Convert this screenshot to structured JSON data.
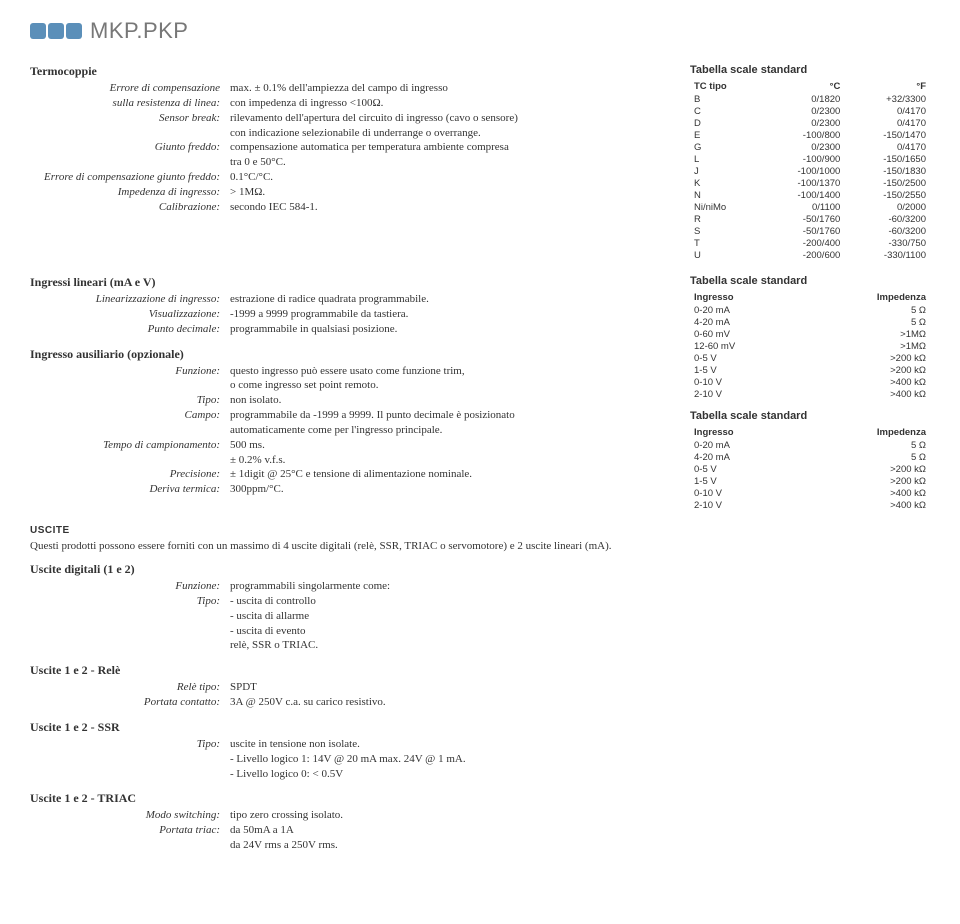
{
  "brand": {
    "name": "MKP.PKP"
  },
  "termo": {
    "title": "Termocoppie",
    "rows": [
      {
        "label": "Errore di compensazione\nsulla resistenza di linea:",
        "value": "max. ± 0.1% dell'ampiezza del campo di ingresso\ncon impedenza di ingresso <100Ω."
      },
      {
        "label": "Sensor break:",
        "value": "rilevamento dell'apertura del circuito di ingresso (cavo o sensore)\ncon indicazione selezionabile di underrange o overrange."
      },
      {
        "label": "Giunto freddo:",
        "value": "compensazione automatica per temperatura ambiente compresa\ntra 0 e 50°C."
      },
      {
        "label": "Errore di compensazione giunto freddo:",
        "value": "0.1°C/°C."
      },
      {
        "label": "Impedenza di ingresso:",
        "value": "> 1MΩ."
      },
      {
        "label": "Calibrazione:",
        "value": "secondo IEC 584-1."
      }
    ]
  },
  "tc_table": {
    "title": "Tabella scale standard",
    "headers": [
      "TC tipo",
      "°C",
      "°F"
    ],
    "rows": [
      [
        "B",
        "0/1820",
        "+32/3300"
      ],
      [
        "C",
        "0/2300",
        "0/4170"
      ],
      [
        "D",
        "0/2300",
        "0/4170"
      ],
      [
        "E",
        "-100/800",
        "-150/1470"
      ],
      [
        "G",
        "0/2300",
        "0/4170"
      ],
      [
        "L",
        "-100/900",
        "-150/1650"
      ],
      [
        "J",
        "-100/1000",
        "-150/1830"
      ],
      [
        "K",
        "-100/1370",
        "-150/2500"
      ],
      [
        "N",
        "-100/1400",
        "-150/2550"
      ],
      [
        "Ni/niMo",
        "0/1100",
        "0/2000"
      ],
      [
        "R",
        "-50/1760",
        "-60/3200"
      ],
      [
        "S",
        "-50/1760",
        "-60/3200"
      ],
      [
        "T",
        "-200/400",
        "-330/750"
      ],
      [
        "U",
        "-200/600",
        "-330/1100"
      ]
    ]
  },
  "linear": {
    "title": "Ingressi lineari (mA e V)",
    "rows": [
      {
        "label": "Linearizzazione di ingresso:",
        "value": "estrazione di radice quadrata programmabile."
      },
      {
        "label": "Visualizzazione:",
        "value": "-1999 a 9999 programmabile da tastiera."
      },
      {
        "label": "Punto decimale:",
        "value": "programmabile in qualsiasi posizione."
      }
    ]
  },
  "aux": {
    "title": "Ingresso ausiliario (opzionale)",
    "rows": [
      {
        "label": "Funzione:",
        "value": "questo ingresso può essere usato come funzione trim,\no come ingresso set point remoto."
      },
      {
        "label": "Tipo:",
        "value": "non isolato."
      },
      {
        "label": "Campo:",
        "value": "programmabile da -1999 a 9999. Il punto decimale è posizionato\nautomaticamente come per l'ingresso principale."
      },
      {
        "label": "Tempo di campionamento:",
        "value": "500 ms.\n± 0.2% v.f.s."
      },
      {
        "label": "Precisione:",
        "value": "± 1digit @ 25°C e tensione di alimentazione nominale."
      },
      {
        "label": "Deriva termica:",
        "value": "300ppm/°C."
      }
    ]
  },
  "lin_table": {
    "title": "Tabella scale standard",
    "headers": [
      "Ingresso",
      "Impedenza"
    ],
    "rows": [
      [
        "0-20 mA",
        "5 Ω"
      ],
      [
        "4-20 mA",
        "5 Ω"
      ],
      [
        "0-60 mV",
        ">1MΩ"
      ],
      [
        "12-60 mV",
        ">1MΩ"
      ],
      [
        "0-5 V",
        ">200 kΩ"
      ],
      [
        "1-5 V",
        ">200 kΩ"
      ],
      [
        "0-10 V",
        ">400 kΩ"
      ],
      [
        "2-10 V",
        ">400 kΩ"
      ]
    ]
  },
  "aux_table": {
    "title": "Tabella scale standard",
    "headers": [
      "Ingresso",
      "Impedenza"
    ],
    "rows": [
      [
        "0-20 mA",
        "5 Ω"
      ],
      [
        "4-20 mA",
        "5 Ω"
      ],
      [
        "0-5 V",
        ">200 kΩ"
      ],
      [
        "1-5 V",
        ">200 kΩ"
      ],
      [
        "0-10 V",
        ">400 kΩ"
      ],
      [
        "2-10 V",
        ">400 kΩ"
      ]
    ]
  },
  "uscite": {
    "heading": "USCITE",
    "intro": "Questi prodotti possono essere forniti con un massimo di 4 uscite digitali (relè, SSR, TRIAC o servomotore) e 2 uscite lineari (mA).",
    "digital": {
      "title": "Uscite digitali (1 e 2)",
      "rows": [
        {
          "label": "Funzione:",
          "value": "programmabili singolarmente come:"
        },
        {
          "label": "Tipo:",
          "value": "- uscita di controllo\n- uscita di allarme\n- uscita di evento\nrelè, SSR o TRIAC."
        }
      ]
    },
    "rele": {
      "title": "Uscite 1 e 2 - Relè",
      "rows": [
        {
          "label": "Relè tipo:",
          "value": "SPDT"
        },
        {
          "label": "Portata contatto:",
          "value": "3A @ 250V c.a. su carico resistivo."
        }
      ]
    },
    "ssr": {
      "title": "Uscite 1 e 2 - SSR",
      "rows": [
        {
          "label": "Tipo:",
          "value": "uscite in tensione non isolate.\n- Livello logico 1: 14V @ 20 mA max. 24V @ 1 mA.\n- Livello logico 0: < 0.5V"
        }
      ]
    },
    "triac": {
      "title": "Uscite 1 e 2 - TRIAC",
      "rows": [
        {
          "label": "Modo switching:",
          "value": "tipo zero crossing isolato."
        },
        {
          "label": "Portata triac:",
          "value": "da 50mA a 1A\nda 24V rms a 250V rms."
        }
      ]
    }
  }
}
